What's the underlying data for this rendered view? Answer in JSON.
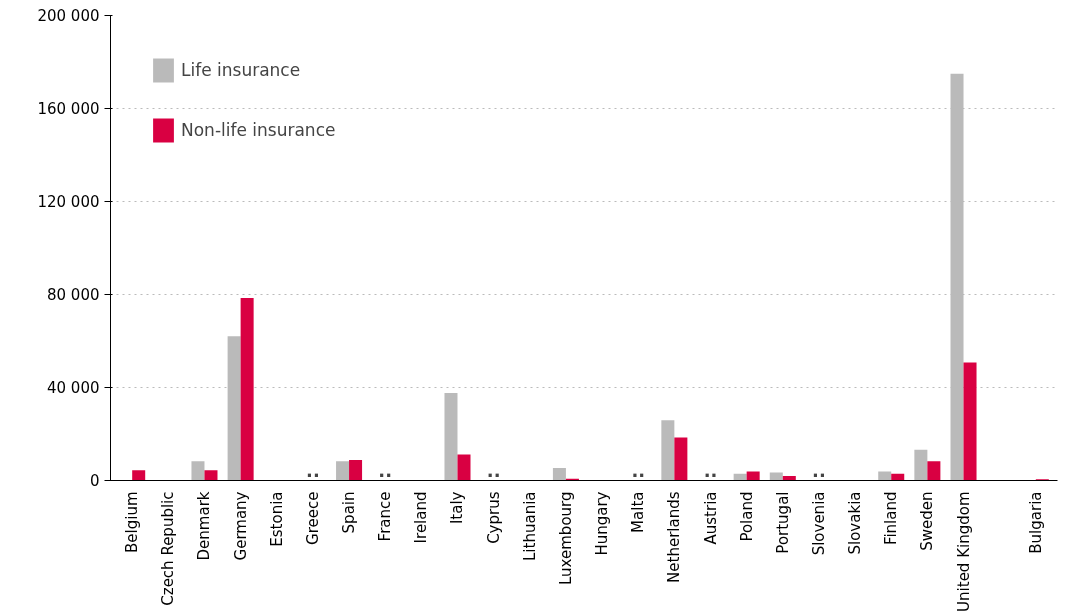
{
  "chart_data": {
    "type": "bar",
    "categories": [
      "Belgium",
      "Czech Republic",
      "Denmark",
      "Germany",
      "Estonia",
      "Greece",
      "Spain",
      "France",
      "Ireland",
      "Italy",
      "Cyprus",
      "Lithuania",
      "Luxembourg",
      "Hungary",
      "Malta",
      "Netherlands",
      "Austria",
      "Poland",
      "Portugal",
      "Slovenia",
      "Slovakia",
      "Finland",
      "Sweden",
      "United Kingdom",
      null,
      "Bulgaria"
    ],
    "series": [
      {
        "name": "Life insurance",
        "color": "#bababa",
        "values": [
          0,
          0,
          8300,
          62000,
          0,
          null,
          8300,
          null,
          0,
          37600,
          null,
          0,
          5400,
          0,
          null,
          25900,
          null,
          2900,
          3400,
          null,
          0,
          3900,
          13200,
          175000,
          null,
          0
        ]
      },
      {
        "name": "Non-life insurance",
        "color": "#d90042",
        "values": [
          4400,
          0,
          4400,
          78500,
          0,
          null,
          8800,
          null,
          0,
          11200,
          null,
          0,
          700,
          0,
          null,
          18500,
          null,
          3900,
          1900,
          null,
          0,
          2900,
          8300,
          50700,
          null,
          500
        ]
      }
    ],
    "ylim": [
      0,
      200000
    ],
    "yticks": [
      {
        "value": 0,
        "label": "0"
      },
      {
        "value": 40000,
        "label": "40 000"
      },
      {
        "value": 80000,
        "label": "80 000"
      },
      {
        "value": 120000,
        "label": "120 000"
      },
      {
        "value": 160000,
        "label": "160 000"
      },
      {
        "value": 200000,
        "label": "200 000"
      }
    ],
    "grid": "y",
    "legend": "top left",
    "annotations": [
      "..",
      "..",
      "..",
      "..",
      "..",
      ".."
    ]
  }
}
